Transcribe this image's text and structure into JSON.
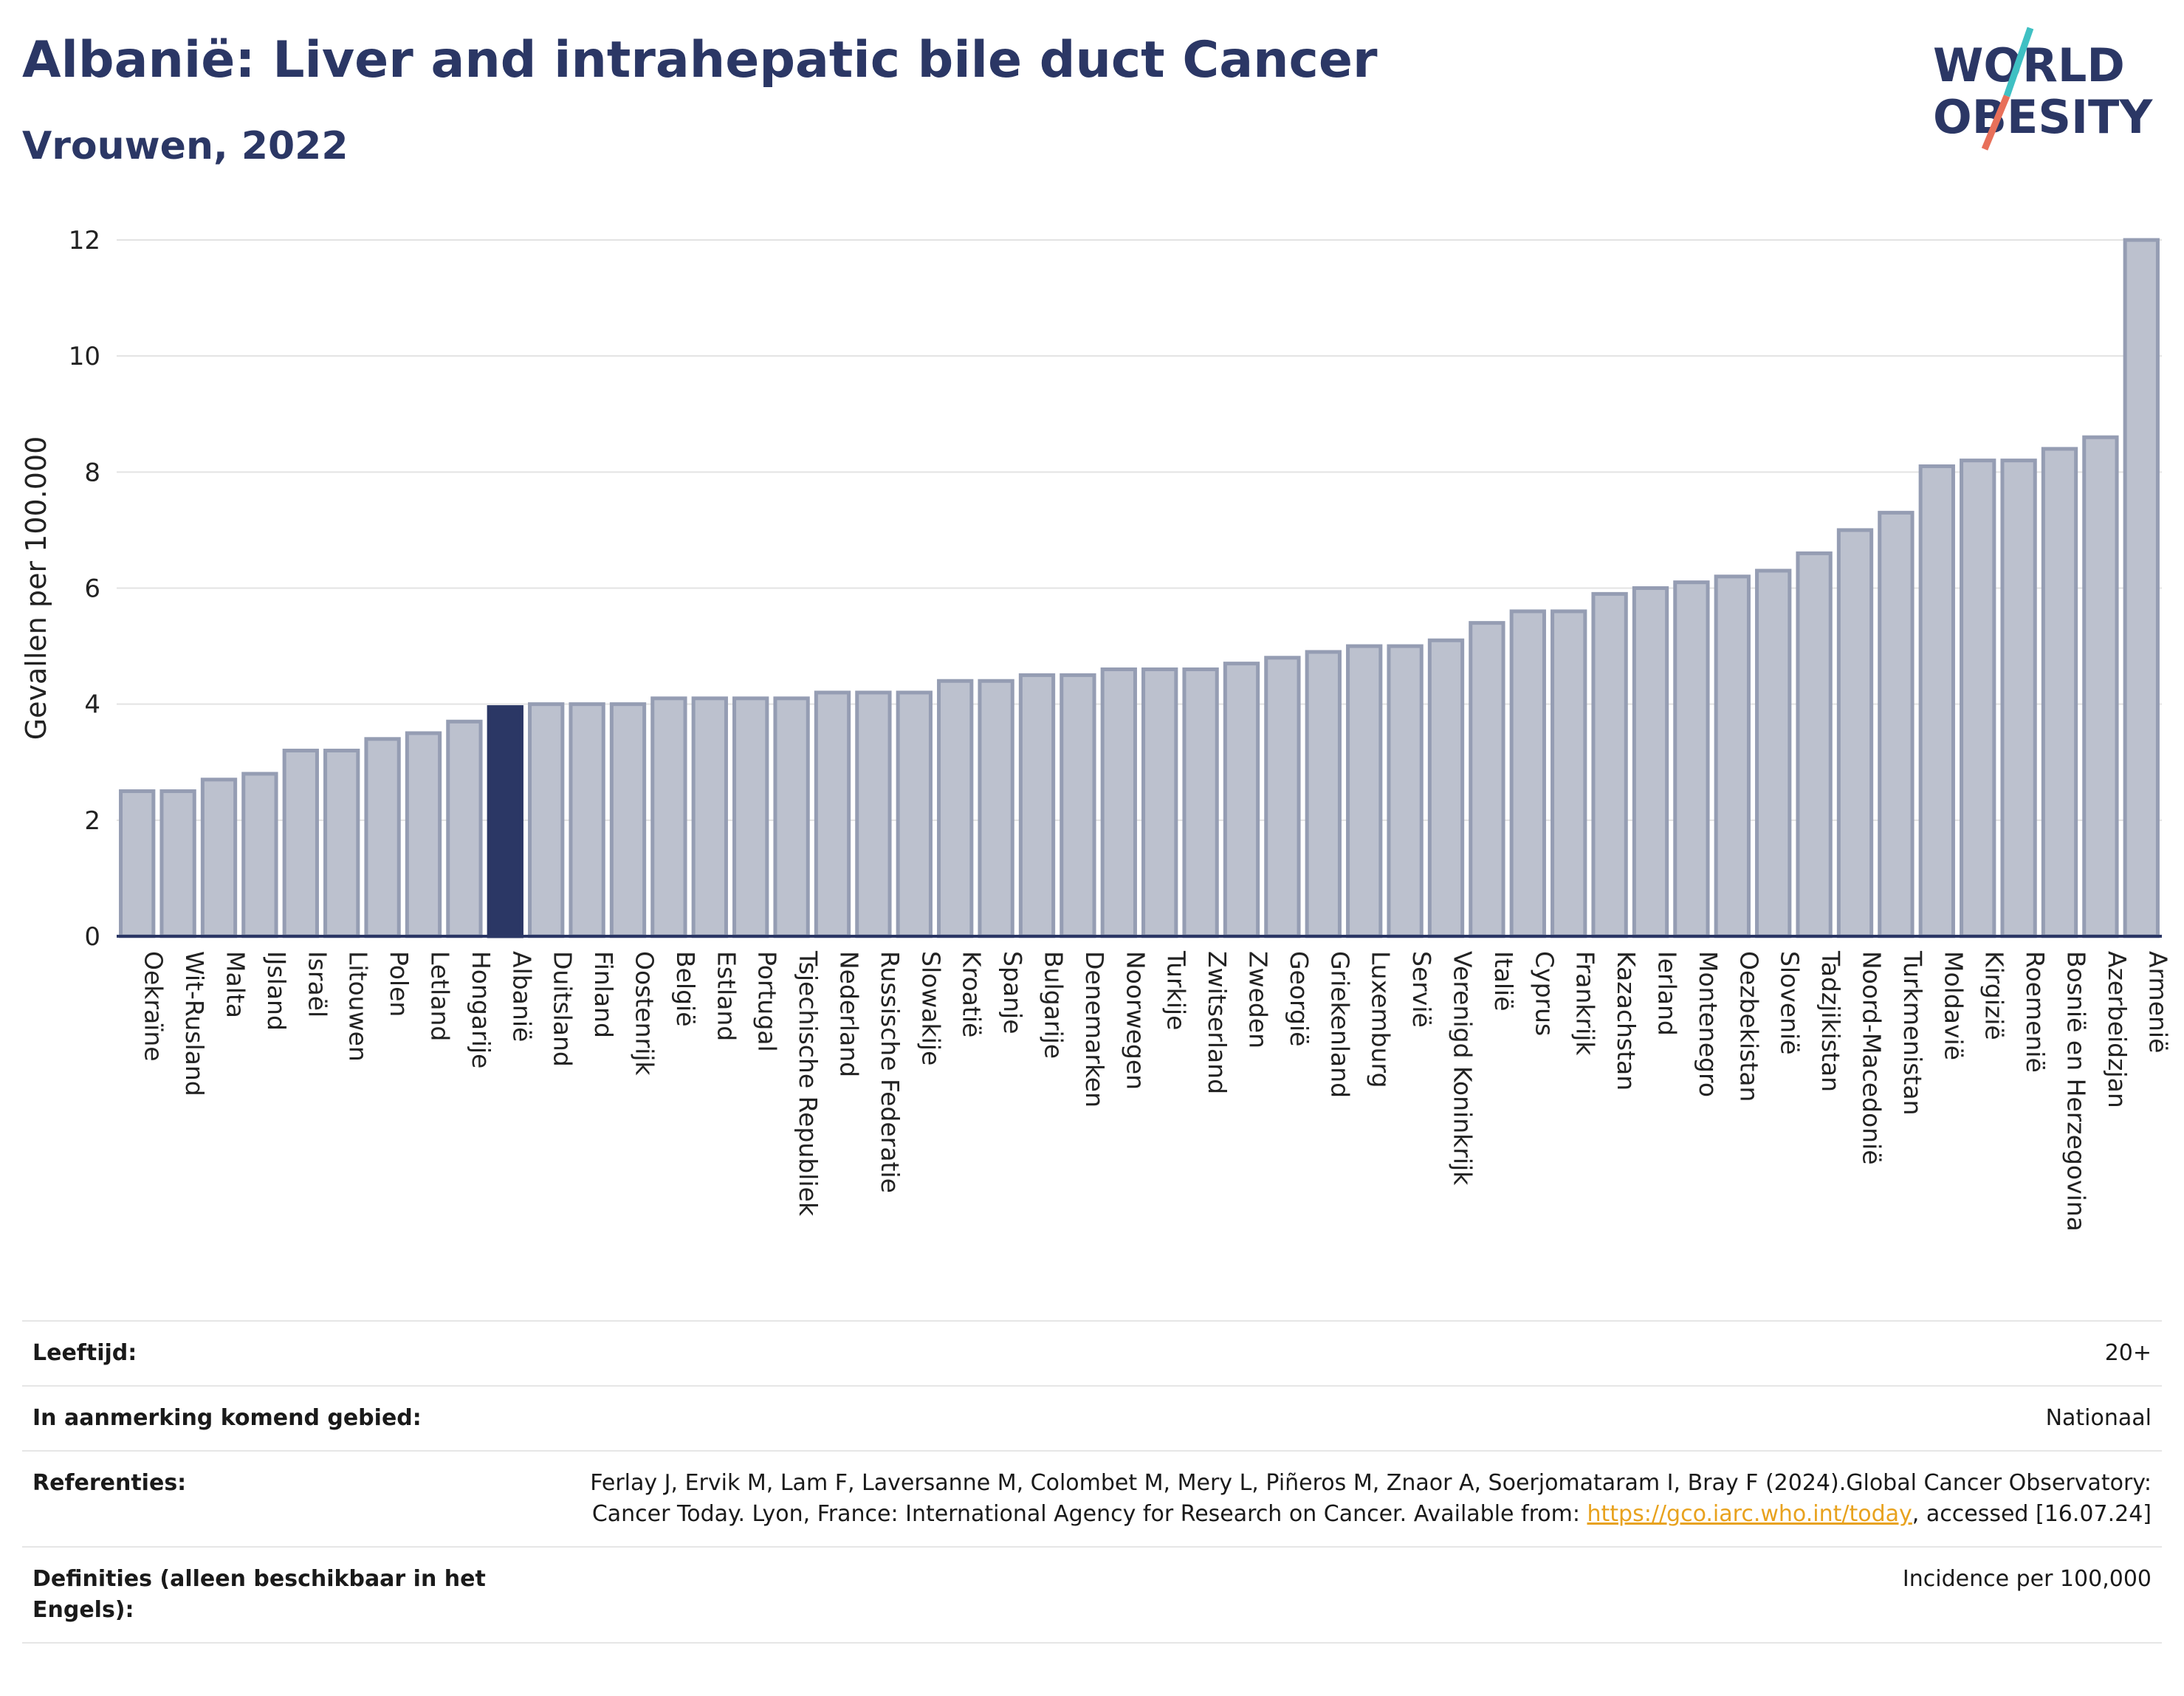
{
  "header": {
    "title": "Albanië: Liver and intrahepatic bile duct Cancer",
    "subtitle": "Vrouwen, 2022"
  },
  "logo": {
    "line1": "WORLD",
    "line2": "OBESITY",
    "text_color": "#2b3765",
    "slash_colors": [
      "#e8705a",
      "#3fc0c3"
    ]
  },
  "chart_data": {
    "type": "bar",
    "ylabel": "Gevallen per 100.000",
    "xlabel": "",
    "ylim": [
      0,
      12
    ],
    "yticks": [
      0,
      2,
      4,
      6,
      8,
      10,
      12
    ],
    "grid": true,
    "highlight": "Albanië",
    "colors": {
      "bar": "#bcc1ce",
      "bar_edge": "#959db3",
      "highlight": "#2b3765",
      "axis": "#2b3765",
      "grid": "#e3e3e3"
    },
    "categories": [
      "Oekraïne",
      "Wit-Rusland",
      "Malta",
      "IJsland",
      "Israël",
      "Litouwen",
      "Polen",
      "Letland",
      "Hongarije",
      "Albanië",
      "Duitsland",
      "Finland",
      "Oostenrijk",
      "België",
      "Estland",
      "Portugal",
      "Tsjechische Republiek",
      "Nederland",
      "Russische Federatie",
      "Slowakije",
      "Kroatië",
      "Spanje",
      "Bulgarije",
      "Denemarken",
      "Noorwegen",
      "Turkije",
      "Zwitserland",
      "Zweden",
      "Georgië",
      "Griekenland",
      "Luxemburg",
      "Servië",
      "Verenigd Koninkrijk",
      "Italië",
      "Cyprus",
      "Frankrijk",
      "Kazachstan",
      "Ierland",
      "Montenegro",
      "Oezbekistan",
      "Slovenië",
      "Tadzjikistan",
      "Noord-Macedonië",
      "Turkmenistan",
      "Moldavië",
      "Kirgizië",
      "Roemenië",
      "Bosnië en Herzegovina",
      "Azerbeidzjan",
      "Armenië"
    ],
    "values": [
      2.5,
      2.5,
      2.7,
      2.8,
      3.2,
      3.2,
      3.4,
      3.5,
      3.7,
      3.95,
      4.0,
      4.0,
      4.0,
      4.1,
      4.1,
      4.1,
      4.1,
      4.2,
      4.2,
      4.2,
      4.4,
      4.4,
      4.5,
      4.5,
      4.6,
      4.6,
      4.6,
      4.7,
      4.8,
      4.9,
      5.0,
      5.0,
      5.1,
      5.4,
      5.6,
      5.6,
      5.9,
      6.0,
      6.1,
      6.2,
      6.3,
      6.6,
      7.0,
      7.3,
      8.1,
      8.2,
      8.2,
      8.4,
      8.6,
      12.0
    ]
  },
  "info": {
    "age_label": "Leeftijd:",
    "age_value": "20+",
    "area_label": "In aanmerking komend gebied:",
    "area_value": "Nationaal",
    "ref_label": "Referenties:",
    "ref_text_1": "Ferlay J, Ervik M, Lam F, Laversanne M, Colombet M, Mery L, Piñeros M, Znaor A, Soerjomataram I, Bray F (2024).Global Cancer Observatory: Cancer Today. Lyon, France: International Agency for Research on Cancer. Available from: ",
    "ref_link": "https://gco.iarc.who.int/today",
    "ref_text_2": ", accessed [16.07.24]",
    "def_label": "Definities (alleen beschikbaar in het Engels):",
    "def_value": "Incidence per 100,000"
  }
}
